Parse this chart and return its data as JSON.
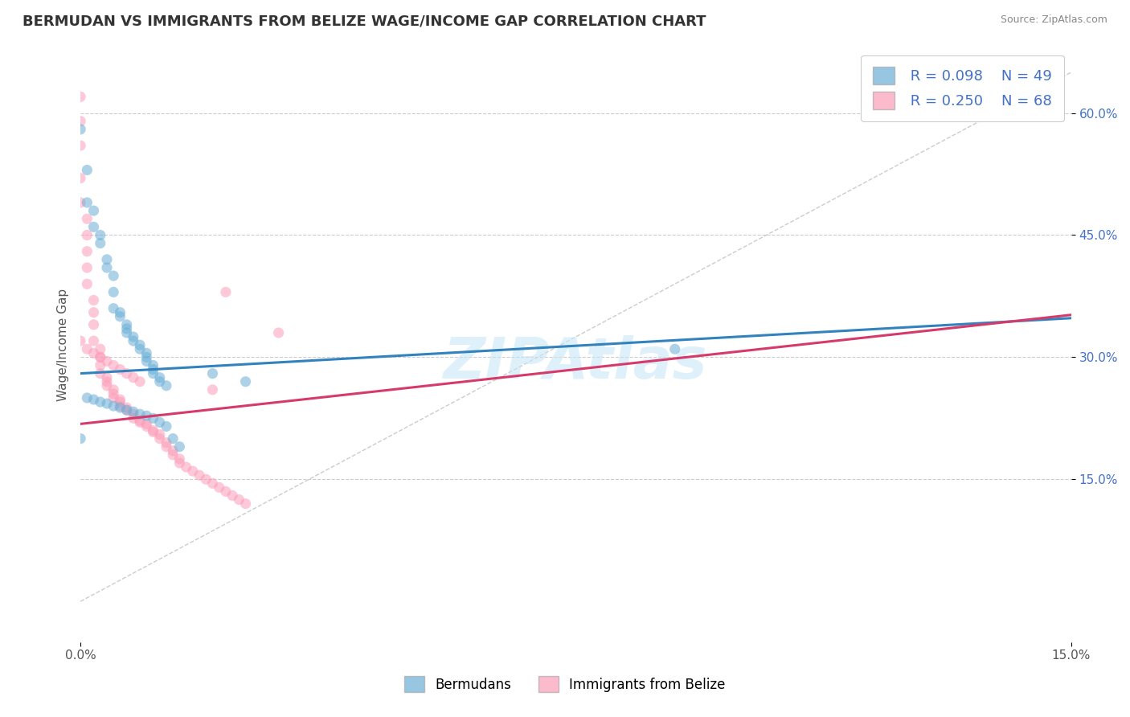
{
  "title": "BERMUDAN VS IMMIGRANTS FROM BELIZE WAGE/INCOME GAP CORRELATION CHART",
  "source": "Source: ZipAtlas.com",
  "ylabel": "Wage/Income Gap",
  "xlim": [
    0.0,
    0.15
  ],
  "ylim": [
    -0.05,
    0.68
  ],
  "x_ticks": [
    0.0,
    0.15
  ],
  "x_tick_labels": [
    "0.0%",
    "15.0%"
  ],
  "y_ticks": [
    0.15,
    0.3,
    0.45,
    0.6
  ],
  "y_tick_labels": [
    "15.0%",
    "30.0%",
    "45.0%",
    "60.0%"
  ],
  "bermudans_R": "0.098",
  "bermudans_N": "49",
  "belize_R": "0.250",
  "belize_N": "68",
  "legend_label1": "Bermudans",
  "legend_label2": "Immigrants from Belize",
  "blue_color": "#6baed6",
  "pink_color": "#fc9db8",
  "blue_line_color": "#3182bd",
  "pink_line_color": "#d63a6a",
  "diagonal_color": "#cccccc",
  "background_color": "#ffffff",
  "watermark": "ZIPAtlas",
  "blue_scatter_x": [
    0.0,
    0.001,
    0.001,
    0.002,
    0.002,
    0.003,
    0.003,
    0.004,
    0.004,
    0.005,
    0.005,
    0.005,
    0.006,
    0.006,
    0.007,
    0.007,
    0.007,
    0.008,
    0.008,
    0.009,
    0.009,
    0.01,
    0.01,
    0.01,
    0.011,
    0.011,
    0.011,
    0.012,
    0.012,
    0.013,
    0.001,
    0.002,
    0.003,
    0.004,
    0.005,
    0.006,
    0.007,
    0.008,
    0.009,
    0.01,
    0.011,
    0.012,
    0.013,
    0.014,
    0.015,
    0.02,
    0.025,
    0.09,
    0.0
  ],
  "blue_scatter_y": [
    0.58,
    0.53,
    0.49,
    0.48,
    0.46,
    0.45,
    0.44,
    0.42,
    0.41,
    0.4,
    0.38,
    0.36,
    0.355,
    0.35,
    0.34,
    0.335,
    0.33,
    0.325,
    0.32,
    0.315,
    0.31,
    0.305,
    0.3,
    0.295,
    0.29,
    0.285,
    0.28,
    0.275,
    0.27,
    0.265,
    0.25,
    0.248,
    0.245,
    0.243,
    0.24,
    0.238,
    0.235,
    0.233,
    0.23,
    0.228,
    0.225,
    0.22,
    0.215,
    0.2,
    0.19,
    0.28,
    0.27,
    0.31,
    0.2
  ],
  "pink_scatter_x": [
    0.0,
    0.0,
    0.0,
    0.0,
    0.0,
    0.001,
    0.001,
    0.001,
    0.001,
    0.001,
    0.002,
    0.002,
    0.002,
    0.002,
    0.003,
    0.003,
    0.003,
    0.003,
    0.004,
    0.004,
    0.004,
    0.005,
    0.005,
    0.005,
    0.006,
    0.006,
    0.006,
    0.007,
    0.007,
    0.008,
    0.008,
    0.009,
    0.009,
    0.01,
    0.01,
    0.011,
    0.011,
    0.012,
    0.012,
    0.013,
    0.013,
    0.014,
    0.014,
    0.015,
    0.015,
    0.016,
    0.017,
    0.018,
    0.019,
    0.02,
    0.021,
    0.022,
    0.023,
    0.024,
    0.025,
    0.0,
    0.001,
    0.002,
    0.003,
    0.004,
    0.005,
    0.006,
    0.007,
    0.008,
    0.009,
    0.02,
    0.022,
    0.03
  ],
  "pink_scatter_y": [
    0.62,
    0.59,
    0.56,
    0.52,
    0.49,
    0.47,
    0.45,
    0.43,
    0.41,
    0.39,
    0.37,
    0.355,
    0.34,
    0.32,
    0.31,
    0.3,
    0.29,
    0.28,
    0.275,
    0.27,
    0.265,
    0.26,
    0.255,
    0.25,
    0.248,
    0.245,
    0.24,
    0.238,
    0.235,
    0.23,
    0.225,
    0.222,
    0.22,
    0.218,
    0.215,
    0.21,
    0.208,
    0.205,
    0.2,
    0.195,
    0.19,
    0.185,
    0.18,
    0.175,
    0.17,
    0.165,
    0.16,
    0.155,
    0.15,
    0.145,
    0.14,
    0.135,
    0.13,
    0.125,
    0.12,
    0.32,
    0.31,
    0.305,
    0.3,
    0.295,
    0.29,
    0.285,
    0.28,
    0.275,
    0.27,
    0.26,
    0.38,
    0.33
  ],
  "blue_line_x0": 0.0,
  "blue_line_y0": 0.28,
  "blue_line_x1": 0.15,
  "blue_line_y1": 0.348,
  "pink_line_x0": 0.0,
  "pink_line_y0": 0.218,
  "pink_line_x1": 0.15,
  "pink_line_y1": 0.352
}
